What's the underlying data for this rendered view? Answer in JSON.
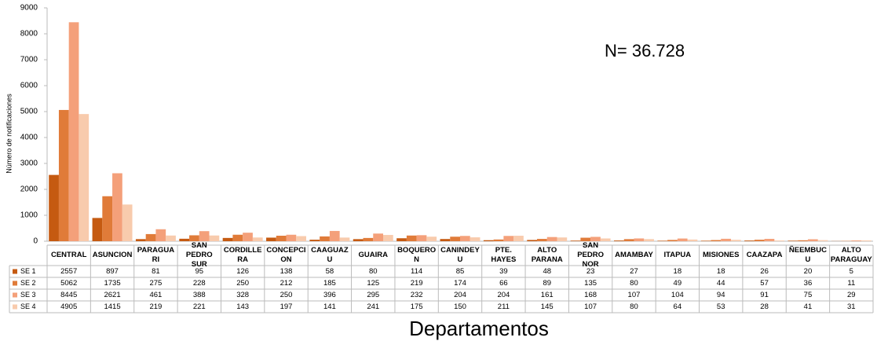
{
  "chart_data": {
    "type": "bar",
    "annotation": "N= 36.728",
    "x_label": "Departamentos",
    "y_label": "Número de notificaciones",
    "categories": [
      "CENTRAL",
      "ASUNCION",
      "PARAGUARI",
      "SAN PEDRO SUR",
      "CORDILLERA",
      "CONCEPCION",
      "CAAGUAZU",
      "GUAIRA",
      "BOQUERON",
      "CANINDEYU",
      "PTE. HAYES",
      "ALTO PARANA",
      "SAN PEDRO NOR",
      "AMAMBAY",
      "ITAPUA",
      "MISIONES",
      "CAAZAPA",
      "ÑEEMBUCU",
      "ALTO PARAGUAY"
    ],
    "series": [
      {
        "name": "SE 1",
        "color": "#c55a11",
        "values": [
          2557,
          897,
          81,
          95,
          126,
          138,
          58,
          80,
          114,
          85,
          39,
          48,
          23,
          27,
          18,
          18,
          26,
          20,
          5
        ]
      },
      {
        "name": "SE 2",
        "color": "#e07b39",
        "values": [
          5062,
          1735,
          275,
          228,
          250,
          212,
          185,
          125,
          219,
          174,
          66,
          89,
          135,
          80,
          49,
          44,
          57,
          36,
          11
        ]
      },
      {
        "name": "SE 3",
        "color": "#f4a07a",
        "values": [
          8445,
          2621,
          461,
          388,
          328,
          250,
          396,
          295,
          232,
          204,
          204,
          161,
          168,
          107,
          104,
          94,
          91,
          75,
          29
        ]
      },
      {
        "name": "SE 4",
        "color": "#f8cbad",
        "values": [
          4905,
          1415,
          219,
          221,
          143,
          197,
          141,
          241,
          175,
          150,
          211,
          145,
          107,
          80,
          64,
          53,
          28,
          41,
          31
        ]
      }
    ],
    "ylim": [
      0,
      9000
    ],
    "yticks": [
      0,
      1000,
      2000,
      3000,
      4000,
      5000,
      6000,
      7000,
      8000,
      9000
    ],
    "grid": false
  }
}
